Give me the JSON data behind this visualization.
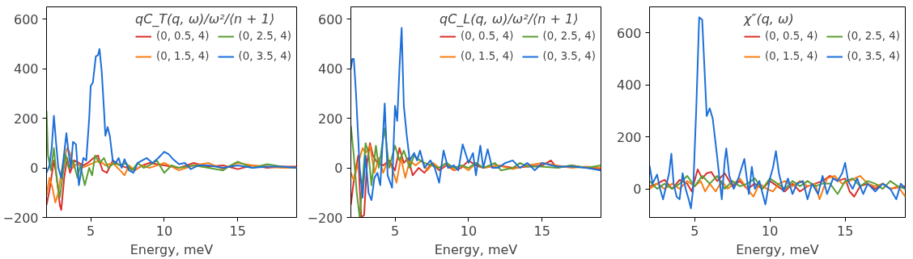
{
  "chart_data": [
    {
      "type": "line",
      "xlabel": "Energy, meV",
      "legend_title": "qC_T(q, ω)/ω²/⟨n + 1⟩",
      "legend": "top right",
      "grid": false,
      "xlim": [
        2,
        19
      ],
      "ylim": [
        -200,
        650
      ],
      "xticks": [
        5,
        10,
        15
      ],
      "yticks": [
        -200,
        0,
        200,
        400,
        600
      ],
      "series": [
        {
          "name": "(0, 0.5, 4)",
          "color": "#d9312b",
          "x": [
            2.0,
            2.2,
            2.5,
            2.7,
            2.9,
            3.0,
            3.2,
            3.4,
            3.6,
            3.9,
            4.2,
            4.5,
            4.8,
            5.2,
            5.5,
            5.8,
            6.1,
            6.5,
            7.0,
            7.5,
            8.0,
            8.5,
            9.0,
            10.0,
            11.0,
            12.0,
            13.0,
            14.0,
            15.0,
            16.0,
            17.0,
            18.0,
            19.0
          ],
          "values": [
            -150,
            -90,
            30,
            -40,
            -150,
            -170,
            -40,
            40,
            -20,
            30,
            20,
            10,
            20,
            40,
            50,
            -10,
            -20,
            30,
            10,
            0,
            -10,
            10,
            20,
            10,
            0,
            20,
            5,
            10,
            -5,
            10,
            0,
            5,
            5
          ]
        },
        {
          "name": "(0, 1.5, 4)",
          "color": "#f77f17",
          "x": [
            2.0,
            2.2,
            2.4,
            2.6,
            2.8,
            3.0,
            3.2,
            3.4,
            3.6,
            3.8,
            4.1,
            4.4,
            4.8,
            5.2,
            5.6,
            6.0,
            6.5,
            7.0,
            7.3,
            7.6,
            8.0,
            8.5,
            9.0,
            10.0,
            11.0,
            12.0,
            13.0,
            14.0,
            15.0,
            16.0,
            17.0,
            18.0,
            19.0
          ],
          "values": [
            -110,
            -40,
            -80,
            -140,
            -100,
            -20,
            40,
            80,
            60,
            0,
            20,
            0,
            10,
            20,
            30,
            10,
            20,
            -10,
            -30,
            10,
            -10,
            10,
            0,
            20,
            -10,
            10,
            20,
            -5,
            20,
            10,
            5,
            0,
            0
          ]
        },
        {
          "name": "(0, 2.5, 4)",
          "color": "#5b9e34",
          "x": [
            2.0,
            2.1,
            2.3,
            2.5,
            2.7,
            2.9,
            3.1,
            3.3,
            3.5,
            3.8,
            4.1,
            4.3,
            4.6,
            4.9,
            5.1,
            5.3,
            5.6,
            5.9,
            6.2,
            6.6,
            7.0,
            7.4,
            7.8,
            8.2,
            8.6,
            9.0,
            9.5,
            10.0,
            10.5,
            11.0,
            12.0,
            13.0,
            14.0,
            14.5,
            15.0,
            16.0,
            17.0,
            18.0,
            19.0
          ],
          "values": [
            230,
            50,
            -10,
            80,
            -50,
            -120,
            -30,
            55,
            0,
            30,
            -40,
            10,
            -70,
            0,
            -30,
            50,
            20,
            40,
            0,
            20,
            10,
            20,
            -10,
            20,
            0,
            10,
            30,
            -20,
            10,
            0,
            10,
            0,
            -10,
            10,
            25,
            0,
            15,
            5,
            0
          ]
        },
        {
          "name": "(0, 3.5, 4)",
          "color": "#1d6fd9",
          "x": [
            2.0,
            2.2,
            2.35,
            2.5,
            2.65,
            2.8,
            3.0,
            3.2,
            3.35,
            3.5,
            3.65,
            3.8,
            4.0,
            4.2,
            4.5,
            4.7,
            4.9,
            5.0,
            5.15,
            5.35,
            5.5,
            5.6,
            5.75,
            5.9,
            6.0,
            6.15,
            6.3,
            6.5,
            6.7,
            6.9,
            7.1,
            7.3,
            7.6,
            7.9,
            8.2,
            8.5,
            8.8,
            9.2,
            9.6,
            10.0,
            10.3,
            10.6,
            11.0,
            11.4,
            11.8,
            12.3,
            13.0,
            14.0,
            15.0,
            16.0,
            17.0,
            18.0,
            19.0
          ],
          "values": [
            -20,
            10,
            80,
            210,
            100,
            0,
            -40,
            60,
            140,
            60,
            0,
            105,
            95,
            -70,
            40,
            30,
            200,
            330,
            345,
            450,
            455,
            480,
            390,
            240,
            130,
            165,
            130,
            30,
            20,
            40,
            0,
            35,
            -10,
            -20,
            20,
            30,
            40,
            20,
            40,
            65,
            55,
            35,
            15,
            20,
            -5,
            10,
            10,
            0,
            10,
            0,
            5,
            5,
            0
          ]
        }
      ]
    },
    {
      "type": "line",
      "xlabel": "Energy, meV",
      "legend_title": "qC_L(q, ω)/ω²/⟨n + 1⟩",
      "legend": "top right",
      "grid": false,
      "xlim": [
        2,
        19
      ],
      "ylim": [
        -200,
        650
      ],
      "xticks": [
        5,
        10,
        15
      ],
      "yticks": [
        -200,
        0,
        200,
        400,
        600
      ],
      "series": [
        {
          "name": "(0, 0.5, 4)",
          "color": "#d9312b",
          "x": [
            2.0,
            2.2,
            2.5,
            2.7,
            2.9,
            3.1,
            3.3,
            3.5,
            3.8,
            4.2,
            4.6,
            5.0,
            5.3,
            5.6,
            5.9,
            6.2,
            6.6,
            7.0,
            7.5,
            8.0,
            8.5,
            9.0,
            9.5,
            10.0,
            10.5,
            11.0,
            12.0,
            13.0,
            14.0,
            15.0,
            15.6,
            16.0,
            17.0,
            18.0,
            19.0
          ],
          "values": [
            -150,
            -50,
            50,
            -200,
            -190,
            20,
            100,
            50,
            20,
            10,
            30,
            -10,
            80,
            20,
            40,
            -30,
            0,
            -20,
            20,
            -10,
            10,
            -10,
            0,
            30,
            10,
            0,
            10,
            0,
            5,
            10,
            30,
            0,
            10,
            0,
            -5
          ]
        },
        {
          "name": "(0, 1.5, 4)",
          "color": "#f77f17",
          "x": [
            2.0,
            2.2,
            2.5,
            2.8,
            3.0,
            3.3,
            3.6,
            3.9,
            4.2,
            4.5,
            4.8,
            5.1,
            5.4,
            5.7,
            6.0,
            6.4,
            6.8,
            7.2,
            7.6,
            8.0,
            8.5,
            9.0,
            9.5,
            10.0,
            10.5,
            11.0,
            12.0,
            13.0,
            14.0,
            15.0,
            16.0,
            17.0,
            18.0,
            19.0
          ],
          "values": [
            -20,
            -50,
            20,
            80,
            60,
            90,
            -20,
            40,
            -20,
            30,
            0,
            -60,
            40,
            -40,
            30,
            10,
            30,
            -10,
            20,
            0,
            20,
            -10,
            10,
            -10,
            20,
            0,
            10,
            -5,
            10,
            20,
            10,
            0,
            5,
            0
          ]
        },
        {
          "name": "(0, 2.5, 4)",
          "color": "#5b9e34",
          "x": [
            2.0,
            2.2,
            2.4,
            2.6,
            2.8,
            3.0,
            3.2,
            3.4,
            3.7,
            3.9,
            4.3,
            4.6,
            5.0,
            5.3,
            5.6,
            6.0,
            6.3,
            6.7,
            7.0,
            7.5,
            8.0,
            8.5,
            9.0,
            9.5,
            10.0,
            10.5,
            11.0,
            11.8,
            12.2,
            13.0,
            13.5,
            14.0,
            15.0,
            16.0,
            17.0,
            18.0,
            19.0
          ],
          "values": [
            170,
            50,
            -100,
            -200,
            -50,
            100,
            60,
            -70,
            90,
            0,
            160,
            0,
            90,
            30,
            70,
            0,
            50,
            30,
            20,
            10,
            0,
            20,
            0,
            10,
            0,
            20,
            0,
            20,
            -10,
            0,
            20,
            5,
            5,
            0,
            10,
            0,
            10
          ]
        },
        {
          "name": "(0, 3.5, 4)",
          "color": "#1d6fd9",
          "x": [
            2.0,
            2.1,
            2.2,
            2.35,
            2.6,
            2.8,
            3.0,
            3.2,
            3.4,
            3.6,
            3.8,
            4.0,
            4.3,
            4.5,
            4.8,
            5.0,
            5.15,
            5.3,
            5.45,
            5.6,
            5.8,
            6.0,
            6.3,
            6.5,
            6.7,
            7.0,
            7.4,
            7.7,
            8.0,
            8.3,
            8.6,
            9.0,
            9.3,
            9.6,
            10.0,
            10.3,
            10.5,
            10.8,
            11.0,
            11.3,
            11.6,
            12.0,
            12.5,
            13.0,
            13.5,
            14.0,
            14.5,
            15.0,
            16.0,
            17.0,
            18.0,
            19.0
          ],
          "values": [
            400,
            440,
            440,
            300,
            0,
            -120,
            50,
            -100,
            -130,
            -40,
            -20,
            -70,
            260,
            -30,
            -80,
            250,
            190,
            400,
            565,
            250,
            130,
            30,
            60,
            30,
            70,
            0,
            30,
            0,
            -60,
            70,
            0,
            10,
            -10,
            95,
            20,
            60,
            -30,
            90,
            0,
            75,
            0,
            0,
            20,
            30,
            0,
            20,
            -10,
            20,
            5,
            5,
            0,
            -10
          ]
        }
      ]
    },
    {
      "type": "line",
      "xlabel": "Energy, meV",
      "legend_title": "χ″(q, ω)",
      "legend": "top right",
      "grid": false,
      "xlim": [
        2,
        19
      ],
      "ylim": [
        -110,
        700
      ],
      "xticks": [
        5,
        10,
        15
      ],
      "yticks": [
        0,
        200,
        400,
        600
      ],
      "series": [
        {
          "name": "(0, 0.5, 4)",
          "color": "#d9312b",
          "x": [
            2.0,
            2.5,
            3.0,
            3.5,
            4.0,
            4.5,
            4.8,
            5.2,
            5.5,
            5.8,
            6.1,
            6.5,
            7.0,
            7.5,
            8.0,
            8.5,
            9.0,
            9.5,
            10.0,
            10.5,
            11.0,
            11.5,
            12.0,
            12.5,
            13.0,
            13.5,
            14.0,
            14.5,
            15.0,
            15.3,
            15.6,
            16.0,
            16.5,
            17.0,
            17.5,
            18.0,
            19.0
          ],
          "values": [
            10,
            20,
            35,
            0,
            35,
            20,
            -10,
            75,
            40,
            60,
            65,
            30,
            60,
            10,
            30,
            0,
            20,
            0,
            30,
            10,
            -10,
            20,
            -10,
            10,
            20,
            30,
            50,
            30,
            40,
            -10,
            -30,
            10,
            20,
            0,
            20,
            0,
            10
          ]
        },
        {
          "name": "(0, 1.5, 4)",
          "color": "#f77f17",
          "x": [
            2.0,
            2.5,
            3.0,
            3.5,
            4.0,
            4.5,
            5.0,
            5.4,
            5.7,
            6.0,
            6.4,
            6.8,
            7.2,
            7.6,
            8.0,
            8.5,
            8.9,
            9.3,
            9.8,
            10.2,
            10.6,
            11.0,
            11.5,
            12.0,
            12.5,
            13.0,
            13.3,
            13.8,
            14.3,
            14.8,
            15.3,
            16.0,
            16.5,
            17.0,
            17.5,
            18.0,
            18.5,
            19.0
          ],
          "values": [
            0,
            20,
            0,
            20,
            0,
            30,
            10,
            30,
            -10,
            20,
            -10,
            30,
            0,
            20,
            40,
            0,
            -30,
            20,
            0,
            -10,
            20,
            30,
            10,
            30,
            10,
            20,
            -40,
            40,
            50,
            20,
            30,
            50,
            20,
            10,
            20,
            0,
            10,
            -30
          ]
        },
        {
          "name": "(0, 2.5, 4)",
          "color": "#5b9e34",
          "x": [
            2.0,
            2.5,
            3.0,
            3.5,
            4.0,
            4.5,
            5.0,
            5.5,
            6.0,
            6.5,
            7.0,
            7.5,
            8.0,
            8.5,
            9.0,
            9.5,
            10.0,
            10.5,
            11.0,
            11.5,
            12.0,
            12.5,
            13.0,
            13.5,
            14.0,
            14.5,
            15.0,
            15.5,
            16.0,
            16.5,
            17.0,
            17.5,
            18.0,
            18.5,
            19.0
          ],
          "values": [
            30,
            0,
            20,
            0,
            20,
            50,
            10,
            50,
            20,
            50,
            0,
            30,
            10,
            20,
            40,
            0,
            40,
            20,
            0,
            30,
            10,
            30,
            10,
            20,
            20,
            -20,
            30,
            40,
            10,
            30,
            20,
            0,
            30,
            10,
            0
          ]
        },
        {
          "name": "(0, 3.5, 4)",
          "color": "#1d6fd9",
          "x": [
            2.0,
            2.2,
            2.5,
            2.7,
            2.9,
            3.1,
            3.3,
            3.45,
            3.6,
            3.8,
            4.0,
            4.2,
            4.4,
            4.6,
            4.75,
            4.9,
            5.1,
            5.3,
            5.5,
            5.8,
            6.0,
            6.2,
            6.5,
            6.8,
            7.0,
            7.1,
            7.3,
            7.6,
            7.9,
            8.3,
            8.6,
            8.8,
            9.0,
            9.3,
            9.7,
            10.0,
            10.2,
            10.4,
            10.6,
            10.9,
            11.2,
            11.5,
            11.8,
            12.2,
            12.5,
            12.8,
            13.2,
            13.5,
            13.8,
            14.2,
            14.5,
            14.8,
            15.0,
            15.2,
            15.5,
            15.8,
            16.2,
            16.5,
            17.0,
            17.5,
            18.0,
            18.4,
            18.7,
            19.0
          ],
          "values": [
            90,
            20,
            55,
            0,
            -40,
            10,
            60,
            135,
            20,
            -30,
            -40,
            60,
            0,
            -40,
            -75,
            0,
            300,
            660,
            650,
            280,
            310,
            270,
            120,
            -40,
            110,
            155,
            50,
            0,
            40,
            115,
            -20,
            85,
            0,
            30,
            -60,
            40,
            80,
            145,
            60,
            -10,
            40,
            -20,
            20,
            30,
            -40,
            20,
            -20,
            50,
            -20,
            40,
            30,
            60,
            100,
            30,
            0,
            40,
            -20,
            20,
            -10,
            20,
            0,
            -40,
            20,
            0
          ]
        }
      ]
    }
  ]
}
